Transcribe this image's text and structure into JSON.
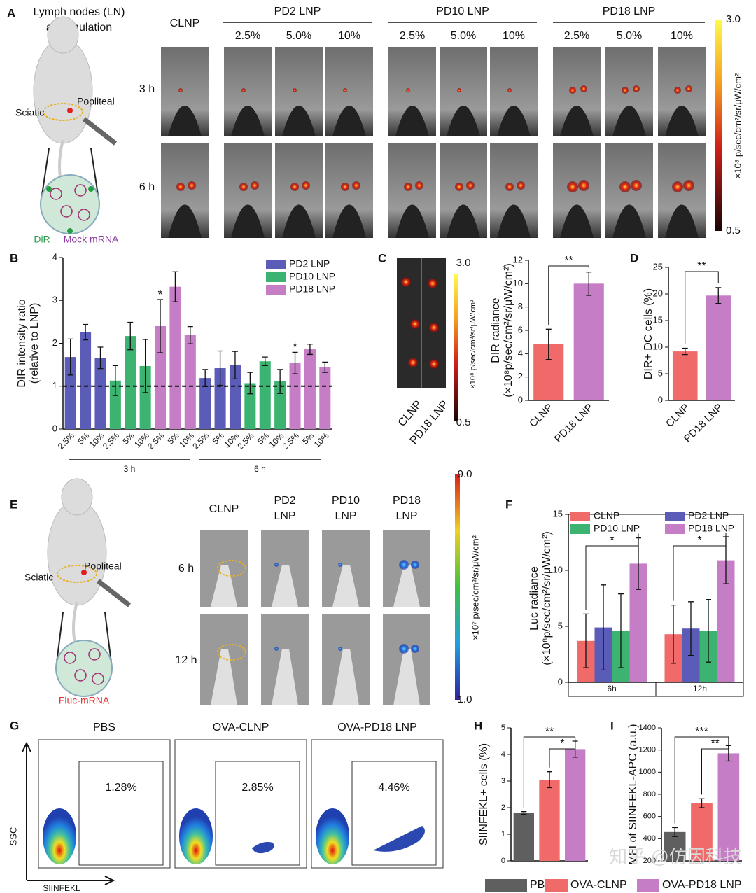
{
  "panel_labels": [
    "A",
    "B",
    "C",
    "D",
    "E",
    "F",
    "G",
    "H",
    "I"
  ],
  "panel_a": {
    "title": [
      "Lymph nodes (LN)",
      "accumulation"
    ],
    "clnp": "CLNP",
    "groups": [
      "PD2 LNP",
      "PD10 LNP",
      "PD18 LNP"
    ],
    "doses": [
      "2.5%",
      "5.0%",
      "10%"
    ],
    "times": [
      "3 h",
      "6 h"
    ],
    "sciatic": "Sciatic",
    "popliteal": "Popliteal",
    "dir": "DiR",
    "mrna": "Mock mRNA",
    "colorbar": {
      "max": "3.0",
      "min": "0.5",
      "label": "×10⁸ p/sec/cm²/sr/μW/cm²"
    }
  },
  "panel_c": {
    "image_labels": [
      "CLNP",
      "PD18 LNP"
    ],
    "colorbar": {
      "max": "3.0",
      "min": "0.5",
      "label": "×10⁸ p/sec/cm²/sr/μW/cm²"
    }
  },
  "panel_e": {
    "columns": [
      [
        "CLNP"
      ],
      [
        "PD2",
        "LNP"
      ],
      [
        "PD10",
        "LNP"
      ],
      [
        "PD18",
        "LNP"
      ]
    ],
    "times": [
      "6 h",
      "12 h"
    ],
    "sciatic": "Sciatic",
    "popliteal": "Popliteal",
    "mrna": "Fluc-mRNA",
    "colorbar": {
      "max": "9.0",
      "min": "1.0",
      "label": "×10⁷ p/sec/cm²/sr/μW/cm²"
    }
  },
  "panel_g": {
    "titles": [
      "PBS",
      "OVA-CLNP",
      "OVA-PD18 LNP"
    ],
    "percents": [
      "1.28%",
      "2.85%",
      "4.46%"
    ],
    "y_axis": "SSC",
    "x_axis": "SIINFEKL"
  },
  "watermark": "知乎 @仿因科技",
  "chart_data": [
    {
      "type": "bar",
      "y_label": [
        "DIR intensity ratio",
        "(relative to LNP)"
      ],
      "categories": [
        "2.5%",
        "5%",
        "10%",
        "2.5%",
        "5%",
        "10%",
        "2.5%",
        "5%",
        "10%",
        "2.5%",
        "5%",
        "10%",
        "2.5%",
        "5%",
        "10%",
        "2.5%",
        "5%",
        "10%"
      ],
      "group_labels": [
        "3 h",
        "6 h"
      ],
      "series": [
        {
          "name": "PD2 LNP",
          "color": "#5b5bb8",
          "values": [
            1.68,
            2.26,
            1.66,
            null,
            null,
            null,
            null,
            null,
            null,
            1.19,
            1.42,
            1.49,
            null,
            null,
            null,
            null,
            null,
            null
          ],
          "errors": [
            0.42,
            0.18,
            0.25,
            null,
            null,
            null,
            null,
            null,
            null,
            0.2,
            0.4,
            0.32,
            null,
            null,
            null,
            null,
            null,
            null
          ]
        },
        {
          "name": "PD10 LNP",
          "color": "#3db371",
          "values": [
            null,
            null,
            null,
            1.13,
            2.17,
            1.47,
            null,
            null,
            null,
            null,
            null,
            null,
            1.07,
            1.58,
            1.11,
            null,
            null,
            null
          ],
          "errors": [
            null,
            null,
            null,
            0.35,
            0.32,
            0.62,
            null,
            null,
            null,
            null,
            null,
            null,
            0.25,
            0.1,
            0.28,
            null,
            null,
            null
          ]
        },
        {
          "name": "PD18 LNP",
          "color": "#c57ec5",
          "values": [
            null,
            null,
            null,
            null,
            null,
            null,
            2.4,
            3.32,
            2.19,
            null,
            null,
            null,
            null,
            null,
            null,
            1.54,
            1.86,
            1.44
          ],
          "errors": [
            null,
            null,
            null,
            null,
            null,
            null,
            0.62,
            0.35,
            0.2,
            null,
            null,
            null,
            null,
            null,
            null,
            0.25,
            0.12,
            0.12
          ]
        }
      ],
      "reference_line": 1,
      "annotations": [
        "*",
        "*"
      ],
      "ylim": [
        0,
        4
      ],
      "yticks": [
        0,
        1,
        2,
        3,
        4
      ]
    },
    {
      "type": "bar",
      "y_label": [
        "DIR radiance",
        "(×10⁸p/sec/cm²/sr/μW/cm²)"
      ],
      "categories": [
        "CLNP",
        "PD18 LNP"
      ],
      "values": [
        4.8,
        10.0
      ],
      "errors": [
        1.3,
        1.0
      ],
      "colors": [
        "#f06a6a",
        "#c57ec5"
      ],
      "annotations": [
        "**"
      ],
      "ylim": [
        0,
        12
      ],
      "yticks": [
        0,
        2,
        4,
        6,
        8,
        10,
        12
      ]
    },
    {
      "type": "bar",
      "y_label": [
        "DIR+ DC cells (%)"
      ],
      "categories": [
        "CLNP",
        "PD18 LNP"
      ],
      "values": [
        9.2,
        19.7
      ],
      "errors": [
        0.6,
        1.5
      ],
      "colors": [
        "#f06a6a",
        "#c57ec5"
      ],
      "annotations": [
        "**"
      ],
      "ylim": [
        0,
        25
      ],
      "yticks": [
        0,
        5,
        10,
        15,
        20,
        25
      ]
    },
    {
      "type": "bar",
      "y_label": [
        "Luc radiance",
        "(×10⁸p/sec/cm²/sr/μW/cm²)"
      ],
      "categories": [
        "6h",
        "12h"
      ],
      "series": [
        {
          "name": "CLNP",
          "color": "#f06a6a",
          "values": [
            3.7,
            4.3
          ],
          "errors": [
            2.4,
            2.6
          ]
        },
        {
          "name": "PD2 LNP",
          "color": "#5b5bb8",
          "values": [
            4.9,
            4.8
          ],
          "errors": [
            3.8,
            2.4
          ]
        },
        {
          "name": "PD10 LNP",
          "color": "#3db371",
          "values": [
            4.6,
            4.6
          ],
          "errors": [
            3.3,
            2.8
          ]
        },
        {
          "name": "PD18 LNP",
          "color": "#c57ec5",
          "values": [
            10.6,
            10.9
          ],
          "errors": [
            2.3,
            2.1
          ]
        }
      ],
      "annotations": [
        "*",
        "*"
      ],
      "ylim": [
        0,
        15
      ],
      "yticks": [
        0,
        5,
        10,
        15
      ]
    },
    {
      "type": "bar",
      "y_label": [
        "SIINFEKL+ cells (%)"
      ],
      "categories": [
        "PBS",
        "OVA-CLNP",
        "OVA-PD18 LNP"
      ],
      "values": [
        1.8,
        3.05,
        4.2
      ],
      "errors": [
        0.05,
        0.3,
        0.3
      ],
      "colors": [
        "#5f5f5f",
        "#f06a6a",
        "#c57ec5"
      ],
      "annotations": [
        "**",
        "*"
      ],
      "ylim": [
        0,
        5
      ],
      "yticks": [
        0,
        1,
        2,
        3,
        4,
        5
      ]
    },
    {
      "type": "bar",
      "y_label": [
        "MFI of SIINFEKL-APC (a.u.)"
      ],
      "categories": [
        "PBS",
        "OVA-CLNP",
        "OVA-PD18 LNP"
      ],
      "values": [
        460,
        720,
        1170
      ],
      "errors": [
        40,
        40,
        70
      ],
      "colors": [
        "#5f5f5f",
        "#f06a6a",
        "#c57ec5"
      ],
      "annotations": [
        "***",
        "**"
      ],
      "ylim": [
        200,
        1400
      ],
      "yticks": [
        200,
        400,
        600,
        800,
        1000,
        1200,
        1400
      ]
    }
  ]
}
